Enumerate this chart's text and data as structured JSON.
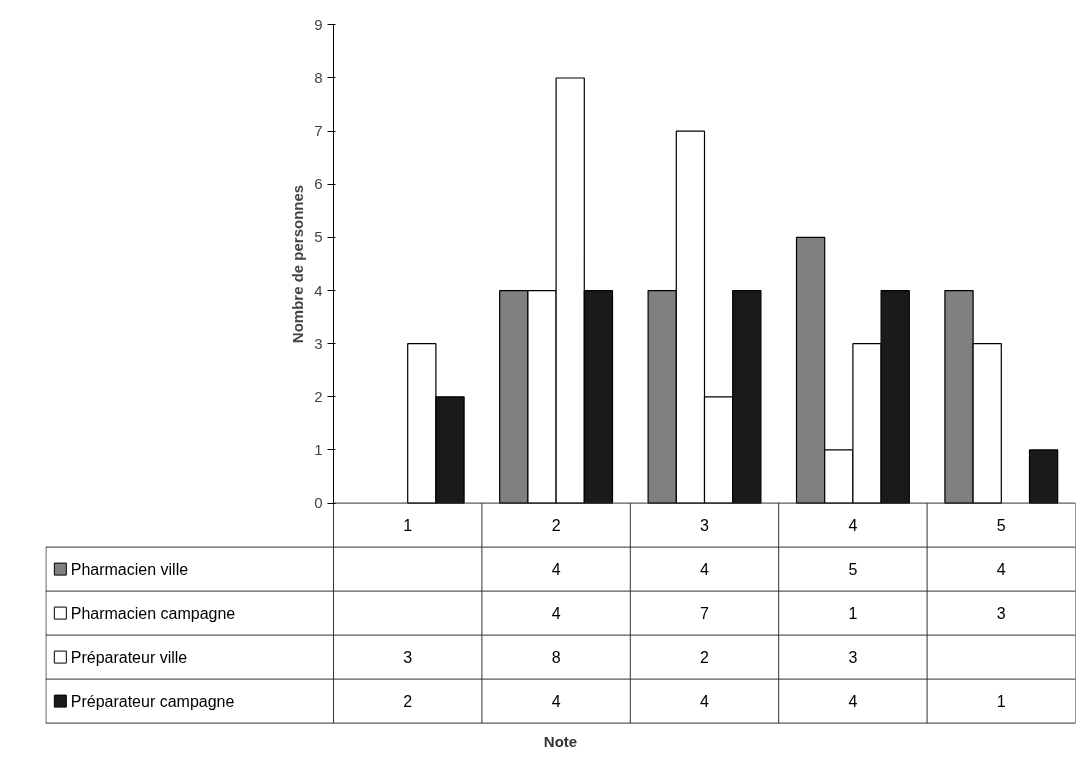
{
  "chart_data": {
    "type": "bar",
    "annotations": [
      "Note"
    ],
    "ylabel": "Nombre de personnes",
    "categories": [
      "1",
      "2",
      "3",
      "4",
      "5"
    ],
    "series": [
      {
        "name": "Pharmacien ville",
        "color": "#808080",
        "values": [
          null,
          4,
          4,
          5,
          4
        ]
      },
      {
        "name": "Pharmacien campagne",
        "color": "#ffffff",
        "values": [
          null,
          4,
          7,
          1,
          3
        ]
      },
      {
        "name": "Préparateur ville",
        "color": "#ffffff",
        "values": [
          3,
          8,
          2,
          3,
          null
        ]
      },
      {
        "name": "Préparateur campagne",
        "color": "#1a1a1a",
        "values": [
          2,
          4,
          4,
          4,
          1
        ]
      }
    ],
    "ylim": [
      0,
      9
    ],
    "yticks": [
      0,
      1,
      2,
      3,
      4,
      5,
      6,
      7,
      8,
      9
    ],
    "grid": false,
    "legend": "bottom",
    "data_labels": true
  }
}
